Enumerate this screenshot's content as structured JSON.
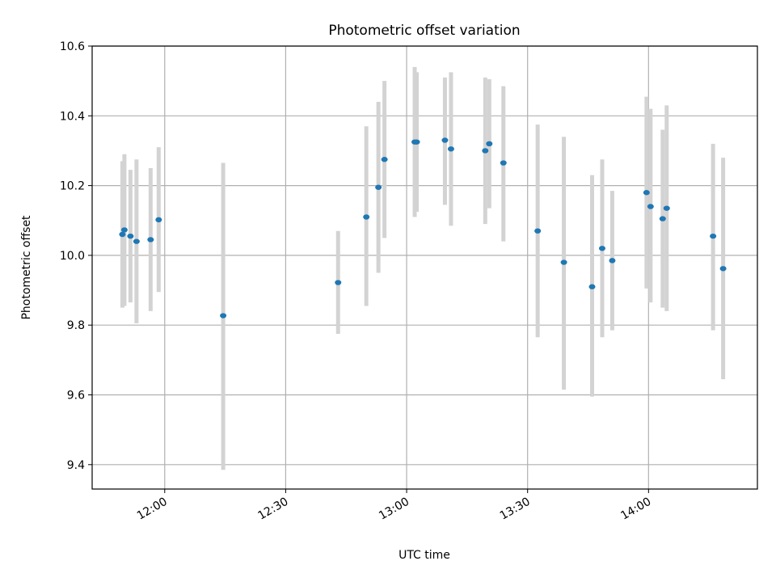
{
  "chart_data": {
    "type": "scatter",
    "title": "Photometric offset variation",
    "xlabel": "UTC time",
    "ylabel": "Photometric offset",
    "xlim": [
      "11:42",
      "14:27"
    ],
    "ylim": [
      9.33,
      10.6
    ],
    "x_ticks": [
      "12:00",
      "12:30",
      "13:00",
      "13:30",
      "14:00"
    ],
    "y_ticks": [
      9.4,
      9.6,
      9.8,
      10.0,
      10.2,
      10.4,
      10.6
    ],
    "y_tick_labels": [
      "9.4",
      "9.6",
      "9.8",
      "10.0",
      "10.2",
      "10.4",
      "10.6"
    ],
    "grid": true,
    "point_color": "#1f77b4",
    "errorbar_color": "#d3d3d3",
    "points": [
      {
        "x": "11:49:30",
        "y": 10.06,
        "ylow": 9.85,
        "yhigh": 10.27
      },
      {
        "x": "11:50:00",
        "y": 10.073,
        "ylow": 9.855,
        "yhigh": 10.29
      },
      {
        "x": "11:51:30",
        "y": 10.055,
        "ylow": 9.865,
        "yhigh": 10.245
      },
      {
        "x": "11:53:00",
        "y": 10.04,
        "ylow": 9.805,
        "yhigh": 10.275
      },
      {
        "x": "11:56:30",
        "y": 10.045,
        "ylow": 9.84,
        "yhigh": 10.25
      },
      {
        "x": "11:58:30",
        "y": 10.102,
        "ylow": 9.895,
        "yhigh": 10.31
      },
      {
        "x": "12:14:30",
        "y": 9.827,
        "ylow": 9.385,
        "yhigh": 10.265
      },
      {
        "x": "12:43:00",
        "y": 9.922,
        "ylow": 9.775,
        "yhigh": 10.07
      },
      {
        "x": "12:50:00",
        "y": 10.11,
        "ylow": 9.855,
        "yhigh": 10.37
      },
      {
        "x": "12:53:00",
        "y": 10.195,
        "ylow": 9.95,
        "yhigh": 10.44
      },
      {
        "x": "12:54:30",
        "y": 10.275,
        "ylow": 10.05,
        "yhigh": 10.5
      },
      {
        "x": "13:02:00",
        "y": 10.325,
        "ylow": 10.11,
        "yhigh": 10.54
      },
      {
        "x": "13:02:30",
        "y": 10.325,
        "ylow": 10.125,
        "yhigh": 10.525
      },
      {
        "x": "13:09:30",
        "y": 10.33,
        "ylow": 10.145,
        "yhigh": 10.51
      },
      {
        "x": "13:11:00",
        "y": 10.305,
        "ylow": 10.085,
        "yhigh": 10.525
      },
      {
        "x": "13:19:30",
        "y": 10.3,
        "ylow": 10.09,
        "yhigh": 10.51
      },
      {
        "x": "13:20:30",
        "y": 10.32,
        "ylow": 10.135,
        "yhigh": 10.505
      },
      {
        "x": "13:24:00",
        "y": 10.265,
        "ylow": 10.04,
        "yhigh": 10.485
      },
      {
        "x": "13:32:30",
        "y": 10.07,
        "ylow": 9.765,
        "yhigh": 10.375
      },
      {
        "x": "13:39:00",
        "y": 9.98,
        "ylow": 9.615,
        "yhigh": 10.34
      },
      {
        "x": "13:46:00",
        "y": 9.91,
        "ylow": 9.595,
        "yhigh": 10.23
      },
      {
        "x": "13:48:30",
        "y": 10.02,
        "ylow": 9.765,
        "yhigh": 10.275
      },
      {
        "x": "13:51:00",
        "y": 9.985,
        "ylow": 9.785,
        "yhigh": 10.185
      },
      {
        "x": "13:59:30",
        "y": 10.18,
        "ylow": 9.905,
        "yhigh": 10.455
      },
      {
        "x": "14:00:30",
        "y": 10.14,
        "ylow": 9.865,
        "yhigh": 10.42
      },
      {
        "x": "14:03:30",
        "y": 10.105,
        "ylow": 9.85,
        "yhigh": 10.36
      },
      {
        "x": "14:04:30",
        "y": 10.135,
        "ylow": 9.84,
        "yhigh": 10.43
      },
      {
        "x": "14:16:00",
        "y": 10.055,
        "ylow": 9.785,
        "yhigh": 10.32
      },
      {
        "x": "14:18:30",
        "y": 9.962,
        "ylow": 9.645,
        "yhigh": 10.28
      }
    ]
  }
}
